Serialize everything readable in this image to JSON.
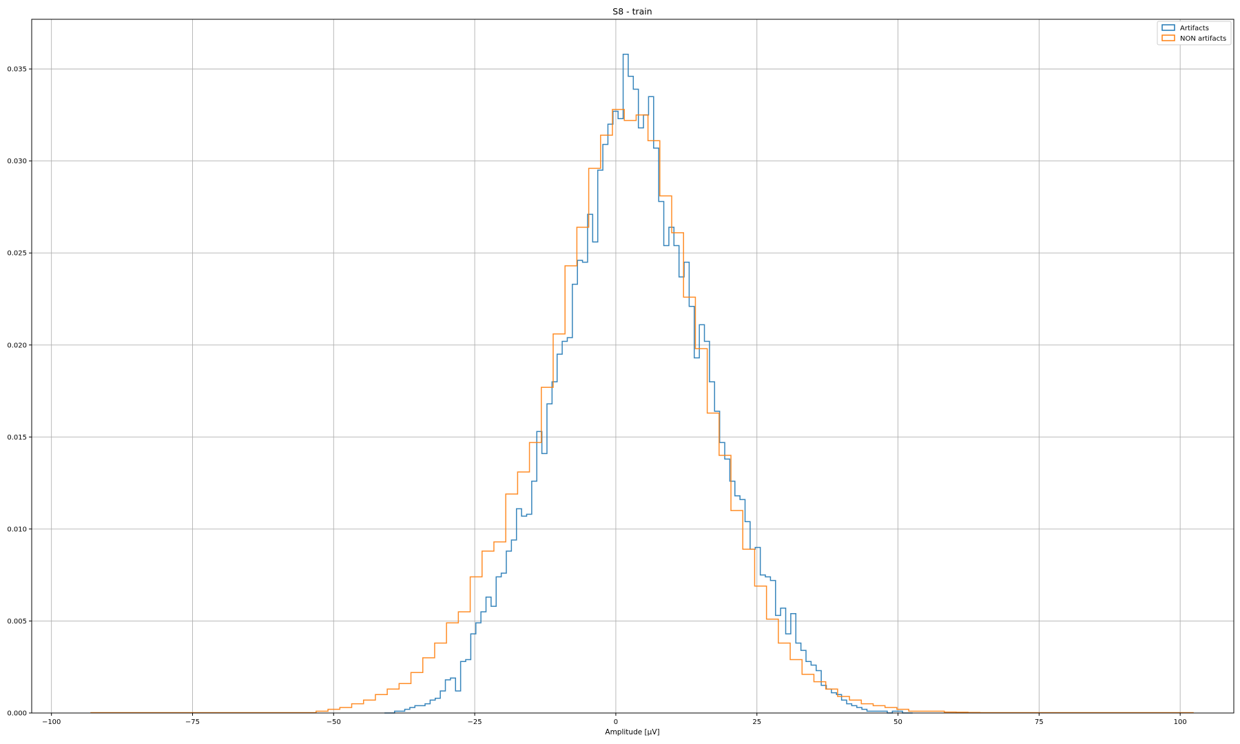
{
  "chart_data": {
    "type": "histogram",
    "title": "S8 - train",
    "xlabel": "Amplitude [μV]",
    "ylabel": "",
    "xlim": [
      -103.5,
      109.5
    ],
    "ylim": [
      0,
      0.0377
    ],
    "grid": true,
    "legend": "top-right",
    "xticks": [
      -100,
      -75,
      -50,
      -25,
      0,
      25,
      50,
      75,
      100
    ],
    "xtick_labels": [
      "−100",
      "−75",
      "−50",
      "−25",
      "0",
      "25",
      "50",
      "75",
      "100"
    ],
    "yticks": [
      0,
      0.005,
      0.01,
      0.015,
      0.02,
      0.025,
      0.03,
      0.035
    ],
    "ytick_labels": [
      "0.000",
      "0.005",
      "0.010",
      "0.015",
      "0.020",
      "0.025",
      "0.030",
      "0.035"
    ],
    "series": [
      {
        "name": "Artifacts",
        "color": "#1f77b4",
        "bin_start": -41.0,
        "bin_width": 0.9,
        "values": [
          0.0,
          0.0,
          0.0001,
          0.0001,
          0.0002,
          0.0003,
          0.0004,
          0.0004,
          0.0005,
          0.0007,
          0.0008,
          0.0012,
          0.0018,
          0.0019,
          0.0012,
          0.0028,
          0.0029,
          0.0043,
          0.0049,
          0.0055,
          0.0063,
          0.0058,
          0.0074,
          0.0076,
          0.0088,
          0.0094,
          0.0111,
          0.0107,
          0.0108,
          0.0126,
          0.0153,
          0.0141,
          0.0168,
          0.018,
          0.0195,
          0.0202,
          0.0204,
          0.0233,
          0.0246,
          0.0245,
          0.0271,
          0.0256,
          0.0295,
          0.0309,
          0.032,
          0.0327,
          0.0323,
          0.0358,
          0.0346,
          0.0339,
          0.0318,
          0.0325,
          0.0335,
          0.0307,
          0.0278,
          0.0254,
          0.0264,
          0.0254,
          0.0237,
          0.0245,
          0.0221,
          0.0193,
          0.0211,
          0.0202,
          0.018,
          0.0164,
          0.0147,
          0.0138,
          0.0126,
          0.0118,
          0.0116,
          0.0104,
          0.0089,
          0.009,
          0.0075,
          0.0074,
          0.0072,
          0.0053,
          0.0057,
          0.0043,
          0.0054,
          0.0038,
          0.0034,
          0.0028,
          0.0026,
          0.0023,
          0.0015,
          0.0013,
          0.0011,
          0.001,
          0.0007,
          0.0005,
          0.0004,
          0.0003,
          0.0002,
          0.0001,
          0.0001,
          0.0001,
          0.0001,
          0.0,
          0.0001,
          0.0001,
          0.0,
          0.0
        ]
      },
      {
        "name": "NON artifacts",
        "color": "#ff7f0e",
        "bin_start": -93.0,
        "bin_width": 2.1,
        "values": [
          2e-05,
          2e-05,
          2e-05,
          2e-05,
          2e-05,
          2e-05,
          2e-05,
          2e-05,
          2e-05,
          2e-05,
          2e-05,
          2e-05,
          2e-05,
          2e-05,
          2e-05,
          2e-05,
          2e-05,
          2e-05,
          2e-05,
          0.0001,
          0.0002,
          0.0003,
          0.0005,
          0.0007,
          0.001,
          0.0013,
          0.0016,
          0.0022,
          0.003,
          0.0038,
          0.0049,
          0.0055,
          0.0074,
          0.0088,
          0.0093,
          0.0119,
          0.0131,
          0.0147,
          0.0177,
          0.0206,
          0.0243,
          0.0264,
          0.0296,
          0.0314,
          0.0328,
          0.0322,
          0.0325,
          0.0311,
          0.0281,
          0.0261,
          0.0226,
          0.0198,
          0.0163,
          0.014,
          0.011,
          0.0089,
          0.0069,
          0.0051,
          0.0038,
          0.0029,
          0.0021,
          0.0017,
          0.0013,
          0.0009,
          0.0007,
          0.0005,
          0.0004,
          0.0003,
          0.0002,
          0.0001,
          0.0001,
          0.0001,
          5e-05,
          4e-05,
          3e-05,
          2e-05,
          2e-05,
          2e-05,
          2e-05,
          2e-05,
          2e-05,
          2e-05,
          2e-05,
          2e-05,
          2e-05,
          2e-05,
          2e-05,
          2e-05,
          2e-05,
          2e-05,
          2e-05,
          2e-05,
          2e-05
        ]
      }
    ]
  }
}
